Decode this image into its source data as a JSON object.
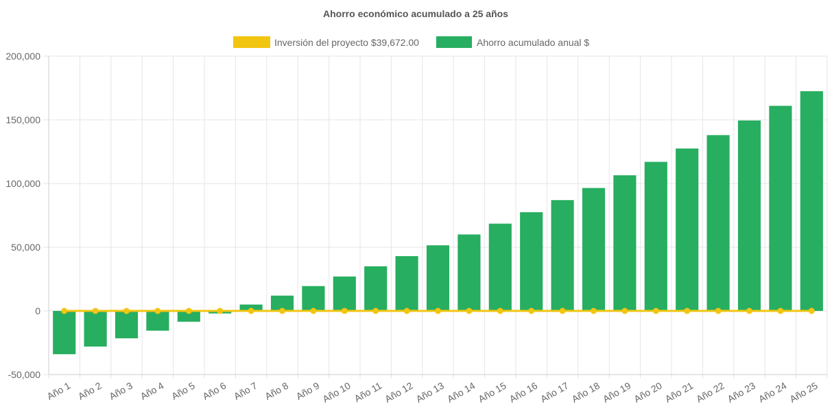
{
  "chart_data": {
    "type": "bar",
    "title": "Ahorro económico acumulado a 25 años",
    "categories": [
      "Año 1",
      "Año 2",
      "Año 3",
      "Año 4",
      "Año 5",
      "Año 6",
      "Año 7",
      "Año 8",
      "Año 9",
      "Año 10",
      "Año 11",
      "Año 12",
      "Año 13",
      "Año 14",
      "Año 15",
      "Año 16",
      "Año 17",
      "Año 18",
      "Año 19",
      "Año 20",
      "Año 21",
      "Año 22",
      "Año 23",
      "Año 24",
      "Año 25"
    ],
    "series": [
      {
        "name": "Inversión del proyecto $39,672.00",
        "type": "line",
        "color": "#f2c511",
        "values": [
          0,
          0,
          0,
          0,
          0,
          0,
          0,
          0,
          0,
          0,
          0,
          0,
          0,
          0,
          0,
          0,
          0,
          0,
          0,
          0,
          0,
          0,
          0,
          0,
          0
        ]
      },
      {
        "name": "Ahorro acumulado anual $",
        "type": "bar",
        "color": "#27ae60",
        "values": [
          -34000,
          -28000,
          -21500,
          -15500,
          -8500,
          -2000,
          5000,
          12000,
          19500,
          27000,
          35000,
          43000,
          51500,
          60000,
          68500,
          77500,
          87000,
          96500,
          106500,
          117000,
          127500,
          138000,
          149500,
          161000,
          172500
        ]
      }
    ],
    "ylim": [
      -50000,
      200000
    ],
    "yticks": [
      "200,000",
      "150,000",
      "100,000",
      "50,000",
      "0",
      "-50,000"
    ],
    "ytick_values": [
      200000,
      150000,
      100000,
      50000,
      0,
      -50000
    ],
    "grid": true,
    "legend_position": "top-center"
  }
}
